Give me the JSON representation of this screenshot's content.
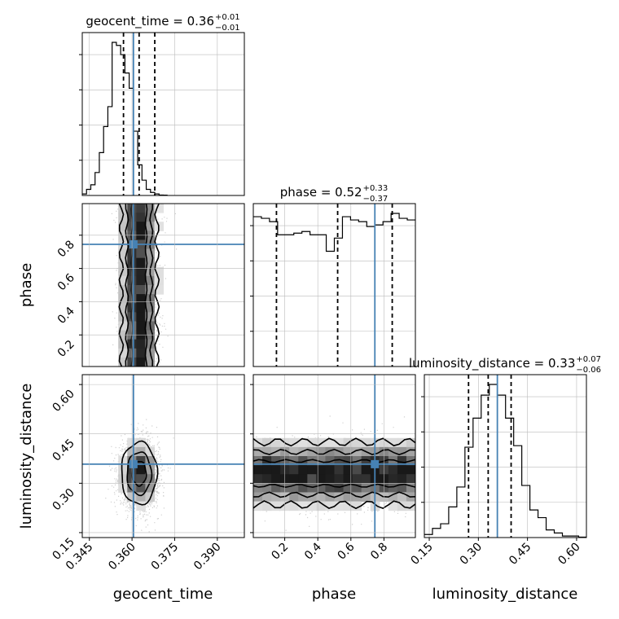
{
  "chart_data": {
    "type": "corner",
    "parameters": [
      {
        "name": "geocent_time",
        "range": [
          0.3425,
          0.3995
        ],
        "ticks": [
          "0.345",
          "0.360",
          "0.375",
          "0.390"
        ],
        "tick_values": [
          0.345,
          0.36,
          0.375,
          0.39
        ]
      },
      {
        "name": "phase",
        "range": [
          0.01,
          0.99
        ],
        "ticks": [
          "0.2",
          "0.4",
          "0.6",
          "0.8"
        ],
        "tick_values": [
          0.2,
          0.4,
          0.6,
          0.8
        ]
      },
      {
        "name": "luminosity_distance",
        "range": [
          0.135,
          0.63
        ],
        "ticks": [
          "0.15",
          "0.30",
          "0.45",
          "0.60"
        ],
        "tick_values": [
          0.15,
          0.3,
          0.45,
          0.6
        ]
      }
    ],
    "titles": [
      {
        "label": "geocent_time = 0.36",
        "sup": "+0.01",
        "sub": "−0.01"
      },
      {
        "label": "phase = 0.52",
        "sup": "+0.33",
        "sub": "−0.37"
      },
      {
        "label": "luminosity_distance = 0.33",
        "sup": "+0.07",
        "sub": "−0.06"
      }
    ],
    "truths": [
      0.3605,
      0.745,
      0.358
    ],
    "quantiles": [
      [
        0.357,
        0.3625,
        0.368
      ],
      [
        0.15,
        0.52,
        0.85
      ],
      [
        0.27,
        0.33,
        0.4
      ]
    ],
    "histograms": [
      {
        "bin_start": 0.3425,
        "bin_width": 0.0015,
        "counts": [
          0.01,
          0.04,
          0.07,
          0.15,
          0.28,
          0.45,
          0.58,
          1.0,
          0.98,
          0.92,
          0.8,
          0.7,
          0.42,
          0.2,
          0.1,
          0.04,
          0.02,
          0.01,
          0.003,
          0.002
        ]
      },
      {
        "bin_start": 0.01,
        "bin_width": 0.049,
        "counts": [
          0.91,
          0.9,
          0.88,
          0.8,
          0.8,
          0.81,
          0.82,
          0.8,
          0.8,
          0.7,
          0.78,
          0.91,
          0.89,
          0.88,
          0.85,
          0.86,
          0.88,
          0.93,
          0.9,
          0.89
        ]
      },
      {
        "bin_start": 0.135,
        "bin_width": 0.0248,
        "counts": [
          0.02,
          0.06,
          0.09,
          0.2,
          0.33,
          0.59,
          0.78,
          0.93,
          1.0,
          0.93,
          0.78,
          0.6,
          0.34,
          0.18,
          0.13,
          0.05,
          0.03,
          0.01,
          0.01,
          0.003
        ]
      }
    ],
    "pair_densities": [
      {
        "x_param": "geocent_time",
        "y_param": "phase",
        "x_center": 0.3625,
        "x_sigma": 0.0033,
        "y_center": 0.5,
        "y_sigma": null
      },
      {
        "x_param": "geocent_time",
        "y_param": "luminosity_distance",
        "x_center": 0.3625,
        "x_sigma": 0.0033,
        "y_center": 0.33,
        "y_sigma": 0.05
      },
      {
        "x_param": "phase",
        "y_param": "luminosity_distance",
        "x_center": 0.5,
        "x_sigma": null,
        "y_center": 0.33,
        "y_sigma": 0.05
      }
    ],
    "colors": {
      "truth": "#4682b4",
      "ink": "#000000",
      "grid": "#bbbbbb",
      "scatter": "#777777"
    },
    "grid": true
  }
}
